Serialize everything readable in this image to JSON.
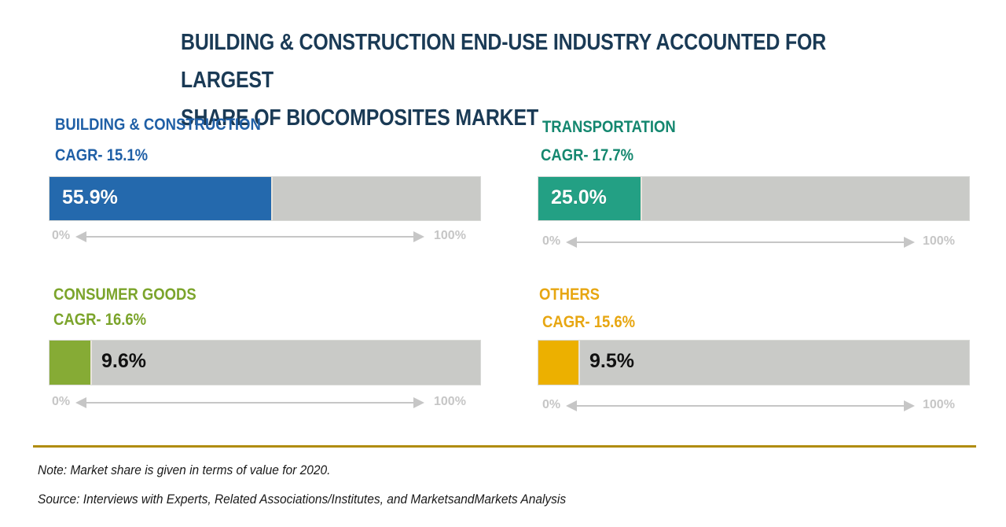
{
  "title_lines": [
    "BUILDING & CONSTRUCTION END-USE INDUSTRY ACCOUNTED FOR LARGEST",
    "SHARE OF BIOCOMPOSITES MARKET"
  ],
  "chart_data": {
    "type": "bar",
    "orientation": "horizontal",
    "title": "BUILDING & CONSTRUCTION END-USE INDUSTRY ACCOUNTED FOR LARGEST SHARE OF BIOCOMPOSITES MARKET",
    "xlabel": "",
    "ylabel": "",
    "xlim": [
      0,
      100
    ],
    "axis_min_label": "0%",
    "axis_max_label": "100%",
    "grid": false,
    "legend": "none",
    "categories": [
      "BUILDING & CONSTRUCTION",
      "TRANSPORTATION",
      "CONSUMER GOODS",
      "OTHERS"
    ],
    "values": [
      55.9,
      25.0,
      9.6,
      9.5
    ],
    "value_labels": [
      "55.9%",
      "25.0%",
      "9.6%",
      "9.5%"
    ],
    "cagr_labels": [
      "CAGR- 15.1%",
      "CAGR- 17.7%",
      "CAGR- 16.6%",
      "CAGR- 15.6%"
    ],
    "cagr_values": [
      15.1,
      17.7,
      16.6,
      15.6
    ],
    "colors": [
      "#2469ad",
      "#23a084",
      "#86ab35",
      "#ecb000"
    ],
    "value_text_colors": [
      "#ffffff",
      "#ffffff",
      "#111111",
      "#111111"
    ],
    "name_colors": [
      "#1f5fa6",
      "#14876f",
      "#7ba42b",
      "#e7a611"
    ]
  },
  "footer": {
    "note": "Note: Market share is given in terms of value for 2020.",
    "source": "Source: Interviews with Experts, Related Associations/Institutes, and MarketsandMarkets Analysis"
  },
  "colors": {
    "track": "#c9cac7",
    "axis": "#c6c6c6",
    "rule": "#b08c0e",
    "title": "#1a3a55"
  }
}
